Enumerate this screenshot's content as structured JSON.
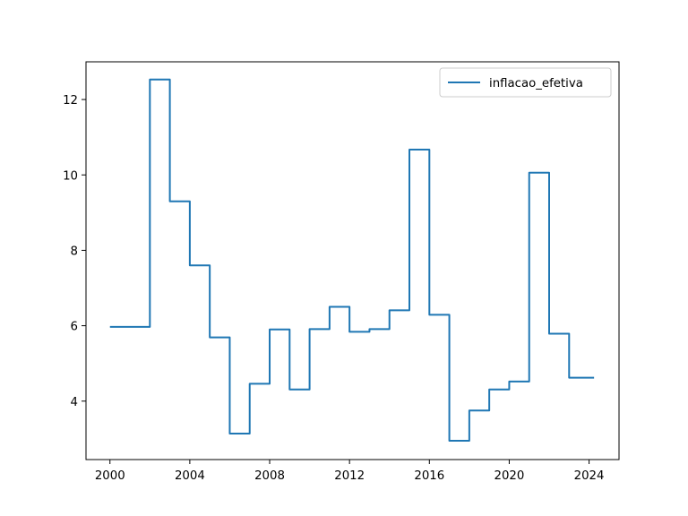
{
  "chart_data": {
    "type": "line",
    "title": "",
    "xlabel": "",
    "ylabel": "",
    "xlim": [
      1998.8,
      2025.5
    ],
    "ylim": [
      2.45,
      13.0
    ],
    "grid": false,
    "legend_position": "upper right",
    "x_ticks": [
      2000,
      2004,
      2008,
      2012,
      2016,
      2020,
      2024
    ],
    "y_ticks": [
      4,
      6,
      8,
      10,
      12
    ],
    "series": [
      {
        "name": "inflacao_efetiva",
        "color": "#1f77b4",
        "step": "post",
        "x": [
          2000,
          2002,
          2003,
          2004,
          2005,
          2006,
          2007,
          2008,
          2009,
          2010,
          2011,
          2012,
          2013,
          2014,
          2015,
          2016,
          2017,
          2018,
          2019,
          2020,
          2021,
          2022,
          2023,
          2024.25
        ],
        "y": [
          5.97,
          12.53,
          9.3,
          7.6,
          5.69,
          3.14,
          4.46,
          5.9,
          4.31,
          5.91,
          6.5,
          5.84,
          5.91,
          6.41,
          10.67,
          6.29,
          2.95,
          3.75,
          4.31,
          4.52,
          10.06,
          5.79,
          4.62,
          4.62
        ]
      }
    ]
  }
}
